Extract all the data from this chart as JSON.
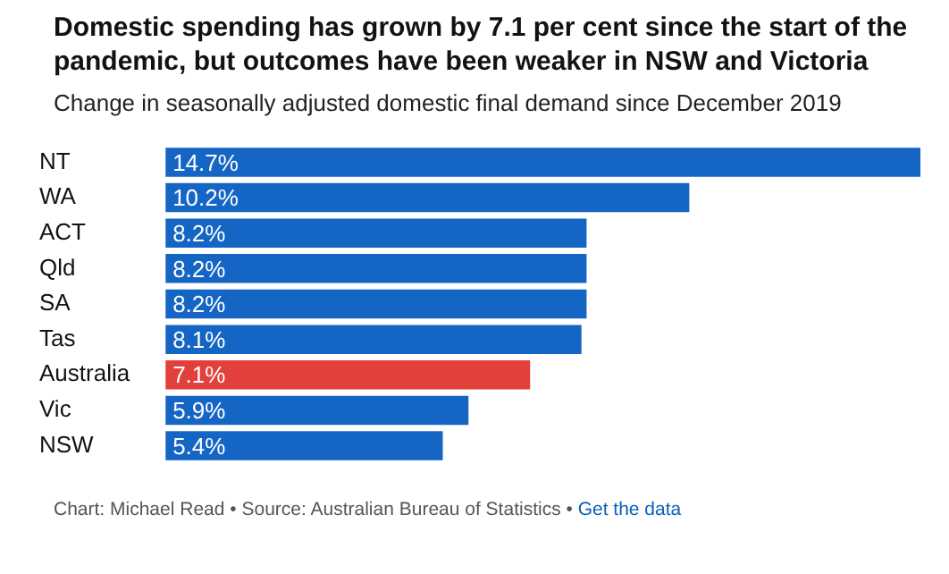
{
  "chart_data": {
    "type": "bar",
    "orientation": "horizontal",
    "title": "Domestic spending has grown by 7.1 per cent since the start of the pandemic, but outcomes have been weaker in NSW and Victoria",
    "subtitle": "Change in seasonally adjusted domestic final demand since December 2019",
    "categories": [
      "NT",
      "WA",
      "ACT",
      "Qld",
      "SA",
      "Tas",
      "Australia",
      "Vic",
      "NSW"
    ],
    "values": [
      14.7,
      10.2,
      8.2,
      8.2,
      8.2,
      8.1,
      7.1,
      5.9,
      5.4
    ],
    "value_labels": [
      "14.7%",
      "10.2%",
      "8.2%",
      "8.2%",
      "8.2%",
      "8.1%",
      "7.1%",
      "5.9%",
      "5.4%"
    ],
    "colors": [
      "#1565c4",
      "#1565c4",
      "#1565c4",
      "#1565c4",
      "#1565c4",
      "#1565c4",
      "#e1403c",
      "#1565c4",
      "#1565c4"
    ],
    "annotations": [
      "Chart: Michael Read • Source: Australian Bureau of Statistics •",
      "Get the data"
    ]
  }
}
